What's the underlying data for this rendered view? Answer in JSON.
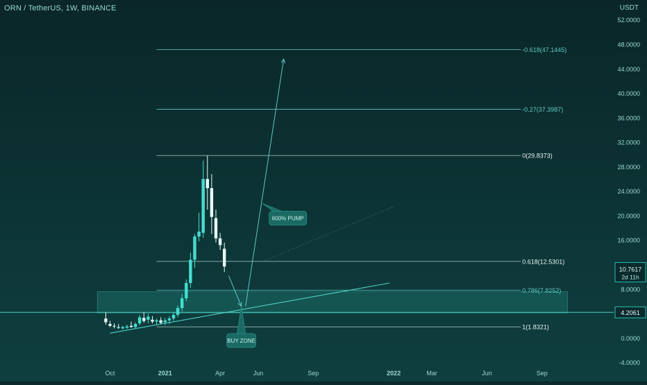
{
  "header": {
    "title": "ORN / TetherUS, 1W, BINANCE",
    "unit": "USDT"
  },
  "colors": {
    "bg_top": "#0a2628",
    "bg_bottom": "#0f3f3f",
    "up": "#3fe0d0",
    "down": "#e8fbfa",
    "line": "#5fc9c2",
    "zone": "#1a6a64",
    "price_tag": "#26bfb2"
  },
  "chart_data": {
    "type": "candlestick",
    "ylim": [
      -4,
      54
    ],
    "y_ticks": [
      "52.0000",
      "48.0000",
      "44.0000",
      "40.0000",
      "36.0000",
      "32.0000",
      "28.0000",
      "24.0000",
      "20.0000",
      "16.0000",
      "12.0000",
      "8.0000",
      "4.0000",
      "0.0000",
      "-4.0000"
    ],
    "y_tick_values": [
      52,
      48,
      44,
      40,
      36,
      32,
      28,
      24,
      20,
      16,
      12,
      8,
      4,
      0,
      -4
    ],
    "x_ticks": [
      "Oct",
      "2021",
      "Apr",
      "Jun",
      "Sep",
      "2022",
      "Mar",
      "Jun",
      "Sep"
    ],
    "x_tick_weeks": [
      0,
      13,
      26,
      35,
      48,
      67,
      76,
      89,
      102
    ],
    "candles": [
      {
        "w": -1,
        "o": 3.2,
        "h": 4.2,
        "l": 2.2,
        "c": 2.6
      },
      {
        "w": 0,
        "o": 2.3,
        "h": 2.8,
        "l": 1.8,
        "c": 2.0
      },
      {
        "w": 1,
        "o": 2.0,
        "h": 2.4,
        "l": 1.6,
        "c": 1.9
      },
      {
        "w": 2,
        "o": 1.8,
        "h": 2.3,
        "l": 1.5,
        "c": 1.7
      },
      {
        "w": 3,
        "o": 1.6,
        "h": 2.0,
        "l": 1.4,
        "c": 1.8
      },
      {
        "w": 4,
        "o": 1.7,
        "h": 2.2,
        "l": 1.5,
        "c": 1.9
      },
      {
        "w": 5,
        "o": 2.0,
        "h": 2.7,
        "l": 1.7,
        "c": 1.8
      },
      {
        "w": 6,
        "o": 1.8,
        "h": 2.6,
        "l": 1.6,
        "c": 2.3
      },
      {
        "w": 7,
        "o": 2.4,
        "h": 3.8,
        "l": 2.1,
        "c": 3.4
      },
      {
        "w": 8,
        "o": 3.3,
        "h": 4.2,
        "l": 2.5,
        "c": 2.8
      },
      {
        "w": 9,
        "o": 3.0,
        "h": 4.0,
        "l": 2.4,
        "c": 3.5
      },
      {
        "w": 10,
        "o": 3.0,
        "h": 3.6,
        "l": 2.4,
        "c": 2.7
      },
      {
        "w": 11,
        "o": 2.7,
        "h": 3.2,
        "l": 2.2,
        "c": 2.9
      },
      {
        "w": 12,
        "o": 2.9,
        "h": 3.4,
        "l": 2.3,
        "c": 2.5
      },
      {
        "w": 13,
        "o": 2.6,
        "h": 3.3,
        "l": 2.1,
        "c": 2.9
      },
      {
        "w": 14,
        "o": 2.9,
        "h": 3.6,
        "l": 2.3,
        "c": 3.2
      },
      {
        "w": 15,
        "o": 3.2,
        "h": 4.1,
        "l": 2.8,
        "c": 3.8
      },
      {
        "w": 16,
        "o": 3.8,
        "h": 5.3,
        "l": 3.4,
        "c": 4.9
      },
      {
        "w": 17,
        "o": 4.9,
        "h": 7.2,
        "l": 4.4,
        "c": 6.5
      },
      {
        "w": 18,
        "o": 6.5,
        "h": 9.6,
        "l": 6.0,
        "c": 9.0
      },
      {
        "w": 19,
        "o": 9.0,
        "h": 14.0,
        "l": 8.2,
        "c": 12.8
      },
      {
        "w": 20,
        "o": 12.8,
        "h": 17.0,
        "l": 11.5,
        "c": 16.6
      },
      {
        "w": 21,
        "o": 16.6,
        "h": 20.5,
        "l": 15.8,
        "c": 17.4
      },
      {
        "w": 22,
        "o": 17.2,
        "h": 29.0,
        "l": 16.4,
        "c": 26.0
      },
      {
        "w": 23,
        "o": 26.0,
        "h": 29.8,
        "l": 21.0,
        "c": 24.5
      },
      {
        "w": 24,
        "o": 24.5,
        "h": 26.8,
        "l": 17.0,
        "c": 19.8
      },
      {
        "w": 25,
        "o": 19.6,
        "h": 21.0,
        "l": 15.6,
        "c": 16.3
      },
      {
        "w": 26,
        "o": 16.3,
        "h": 17.2,
        "l": 14.4,
        "c": 15.2
      },
      {
        "w": 27,
        "o": 14.6,
        "h": 15.6,
        "l": 10.8,
        "c": 11.7
      }
    ],
    "fib_levels": [
      {
        "label": "-0.618(47.1445)",
        "value": 47.1445,
        "bright": false
      },
      {
        "label": "-0.27(37.3987)",
        "value": 37.3987,
        "bright": false
      },
      {
        "label": "0(29.8373)",
        "value": 29.8373,
        "bright": true
      },
      {
        "label": "0.618(12.5301)",
        "value": 12.5301,
        "bright": true
      },
      {
        "label": "0.786(7.8252)",
        "value": 7.8252,
        "bright": false
      },
      {
        "label": "1(1.8321)",
        "value": 1.8321,
        "bright": true
      }
    ],
    "buy_zone": {
      "top": 7.6,
      "bottom": 4.1
    },
    "support_line": {
      "week1": 0,
      "value1": 0.8,
      "week2": 66,
      "value2": 9.0
    },
    "horizontal_line": 4.2061,
    "arrow_down": {
      "week1": 28,
      "value1": 10.2,
      "week2": 31,
      "value2": 5.2
    },
    "arrow_up": {
      "week1": 32,
      "value1": 5.2,
      "week2": 41,
      "value2": 45.6
    },
    "dotted_projection": {
      "week1": 36,
      "value1": 12.5,
      "week2": 67,
      "value2": 21.5
    },
    "price_tag": {
      "value": 10.7617,
      "label": "10.7617",
      "sub": "2d 11h"
    },
    "level_tag": {
      "value": 4.2061,
      "label": "4.2061"
    },
    "callouts": [
      {
        "text": "600% PUMP",
        "week": 42,
        "value": 19.6,
        "tail_week": 36,
        "tail_value": 22.0
      },
      {
        "text": "BUY ZONE",
        "week": 31,
        "value": -0.4,
        "tail_week": 31,
        "tail_value": 5.2
      }
    ]
  }
}
